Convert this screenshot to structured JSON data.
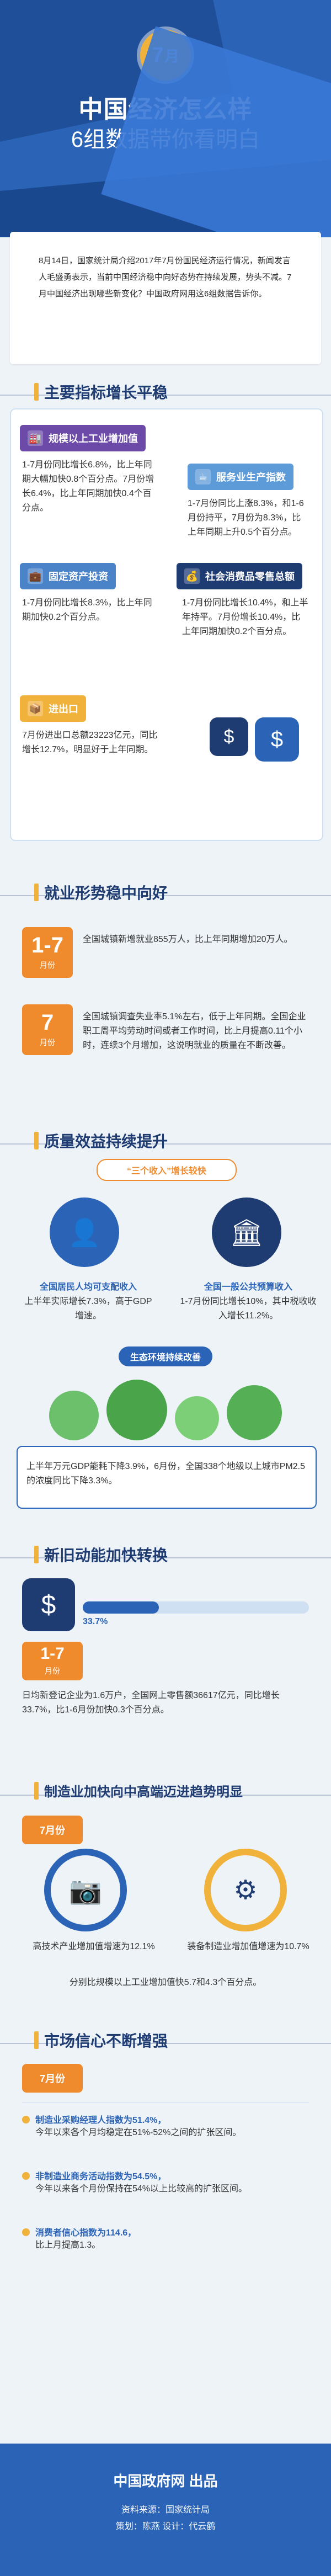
{
  "header": {
    "badge_num": "7",
    "badge_unit": "月",
    "title": "中国经济怎么样",
    "subtitle": "6组数据带你看明白"
  },
  "intro": "8月14日，国家统计局介绍2017年7月份国民经济运行情况，新闻发言人毛盛勇表示，当前中国经济稳中向好态势在持续发展，势头不减。7月中国经济出现哪些新变化？中国政府网用这6组数据告诉你。",
  "sections": {
    "s1": {
      "title": "主要指标增长平稳",
      "items": [
        {
          "label": "规模以上工业增加值",
          "text": "1-7月份同比增长6.8%，比上年同期大幅加快0.8个百分点。7月份增长6.4%，比上年同期加快0.4个百分点。"
        },
        {
          "label": "服务业生产指数",
          "text": "1-7月份同比上涨8.3%，和1-6月份持平，7月份为8.3%，比上年同期上升0.5个百分点。"
        },
        {
          "label": "固定资产投资",
          "text": "1-7月份同比增长8.3%，比上年同期加快0.2个百分点。"
        },
        {
          "label": "社会消费品零售总额",
          "text": "1-7月份同比增长10.4%，和上半年持平。7月份增长10.4%，比上年同期加快0.2个百分点。"
        },
        {
          "label": "进出口",
          "text": "7月份进出口总额23223亿元，同比增长12.7%，明显好于上年同期。"
        }
      ]
    },
    "s2": {
      "title": "就业形势稳中向好",
      "items": [
        {
          "box_num": "1-7",
          "box_label": "月份",
          "text": "全国城镇新增就业855万人，比上年同期增加20万人。"
        },
        {
          "box_num": "7",
          "box_label": "月份",
          "text": "全国城镇调查失业率5.1%左右，低于上年同期。全国企业职工周平均劳动时间或者工作时间，比上月提高0.11个小时，连续3个月增加，这说明就业的质量在不断改善。"
        }
      ]
    },
    "s3": {
      "title": "质量效益持续提升",
      "pill_1": "“三个收入”增长较快",
      "left_caption": "全国居民人均可支配收入",
      "left_text": "上半年实际增长7.3%，高于GDP增速。",
      "right_caption": "全国一般公共预算收入",
      "right_text": "1-7月份同比增长10%，其中税收收入增长11.2%。",
      "pill_2": "生态环境持续改善",
      "eco_text": "上半年万元GDP能耗下降3.9%，6月份，全国338个地级以上城市PM2.5的浓度同比下降3.3%。"
    },
    "s4": {
      "title": "新旧动能加快转换",
      "percent": "33.7%",
      "box_num": "1-7",
      "box_label": "月份",
      "text": "日均新登记企业为1.6万户，全国网上零售额36617亿元，同比增长33.7%，比1-6月份加快0.3个百分点。"
    },
    "s5": {
      "title": "制造业加快向中高端迈进趋势明显",
      "month": "7月份",
      "left_caption": "高技术产业增加值增速为12.1%",
      "right_caption": "装备制造业增加值增速为10.7%",
      "summary": "分别比规模以上工业增加值快5.7和4.3个百分点。"
    },
    "s6": {
      "title": "市场信心不断增强",
      "month": "7月份",
      "items": [
        {
          "title": "制造业采购经理人指数为51.4%，",
          "sub": "今年以来各个月均稳定在51%-52%之间的扩张区间。"
        },
        {
          "title": "非制造业商务活动指数为54.5%，",
          "sub": "今年以来各个月份保持在54%以上比较高的扩张区间。"
        },
        {
          "title": "消费者信心指数为114.6，",
          "sub": "比上月提高1.3。"
        }
      ]
    }
  },
  "footer": {
    "brand": "中国政府网 出品",
    "source": "资料来源：国家统计局",
    "credits": "策划：陈燕     设计：代云鹤"
  },
  "colors": {
    "primary": "#2b64b6",
    "dark": "#1f3c72",
    "accent": "#f0b23b",
    "orange": "#f08b2d",
    "purple": "#6c4aa7",
    "bg": "#eef3f8"
  }
}
